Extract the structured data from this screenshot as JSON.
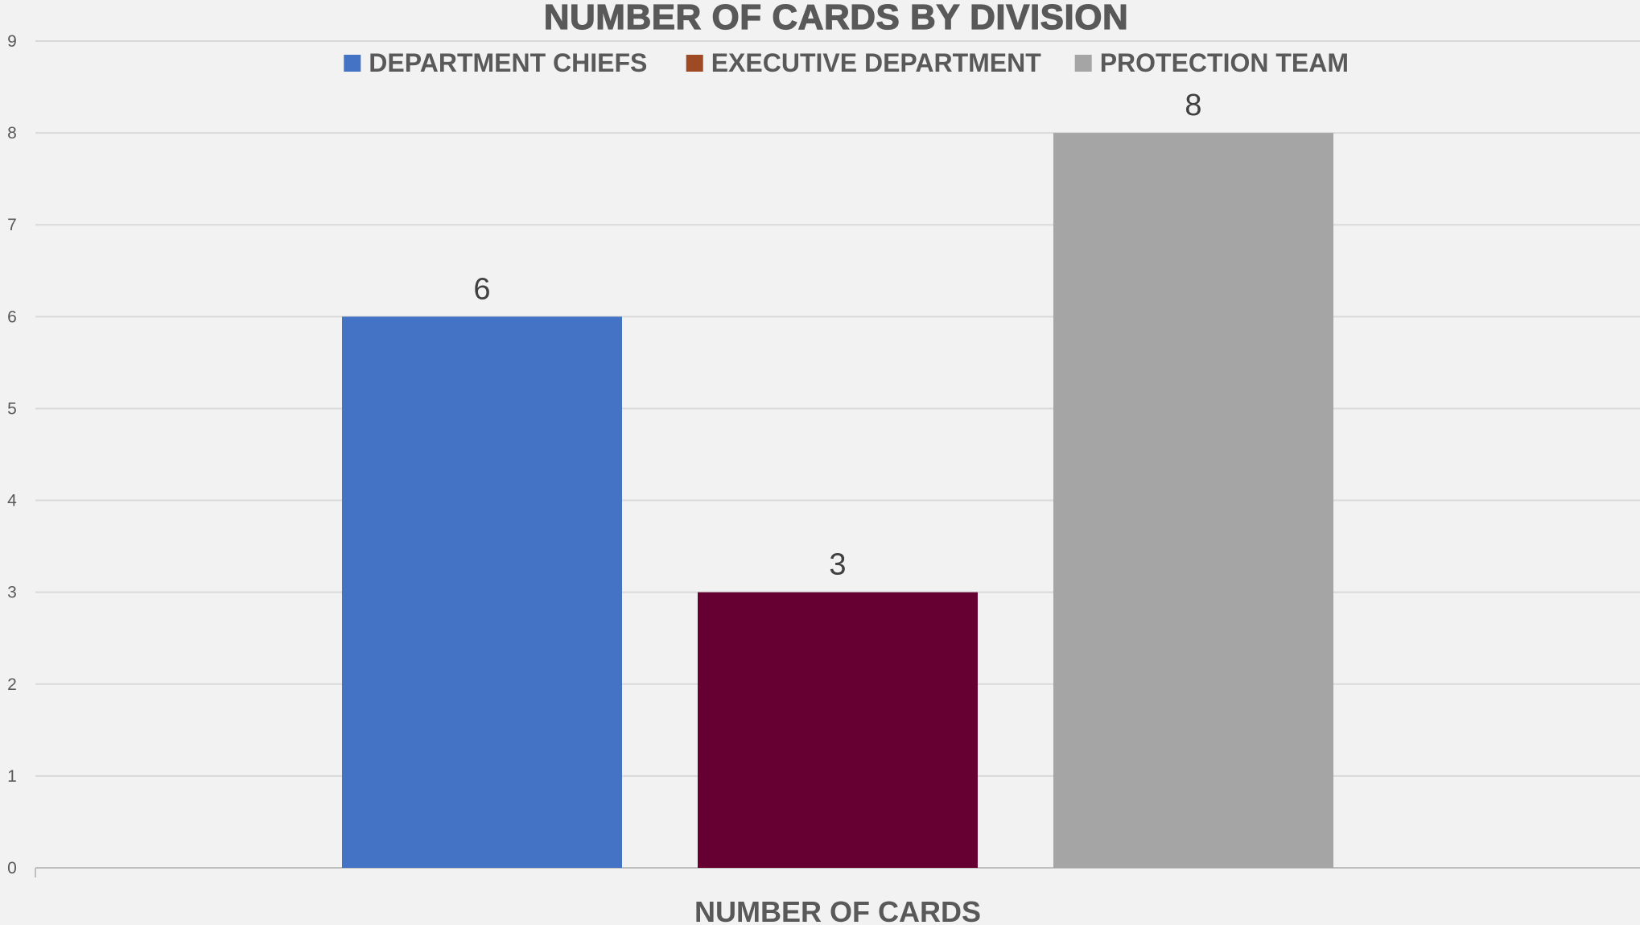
{
  "chart_data": {
    "type": "bar",
    "title": "NUMBER OF CARDS BY DIVISION",
    "categories": [
      "NUMBER OF CARDS"
    ],
    "series": [
      {
        "name": "DEPARTMENT CHIEFS",
        "values": [
          6
        ],
        "color": "#4472c4"
      },
      {
        "name": "EXECUTIVE DEPARTMENT",
        "values": [
          3
        ],
        "color": "#660033",
        "legend_color": "#9e4a25"
      },
      {
        "name": "PROTECTION TEAM",
        "values": [
          8
        ],
        "color": "#a5a5a5"
      }
    ],
    "xlabel": "",
    "ylabel": "",
    "ylim": [
      0,
      9
    ],
    "yticks": [
      0,
      1,
      2,
      3,
      4,
      5,
      6,
      7,
      8,
      9
    ],
    "grid": true,
    "legend_position": "top",
    "data_labels": true
  }
}
